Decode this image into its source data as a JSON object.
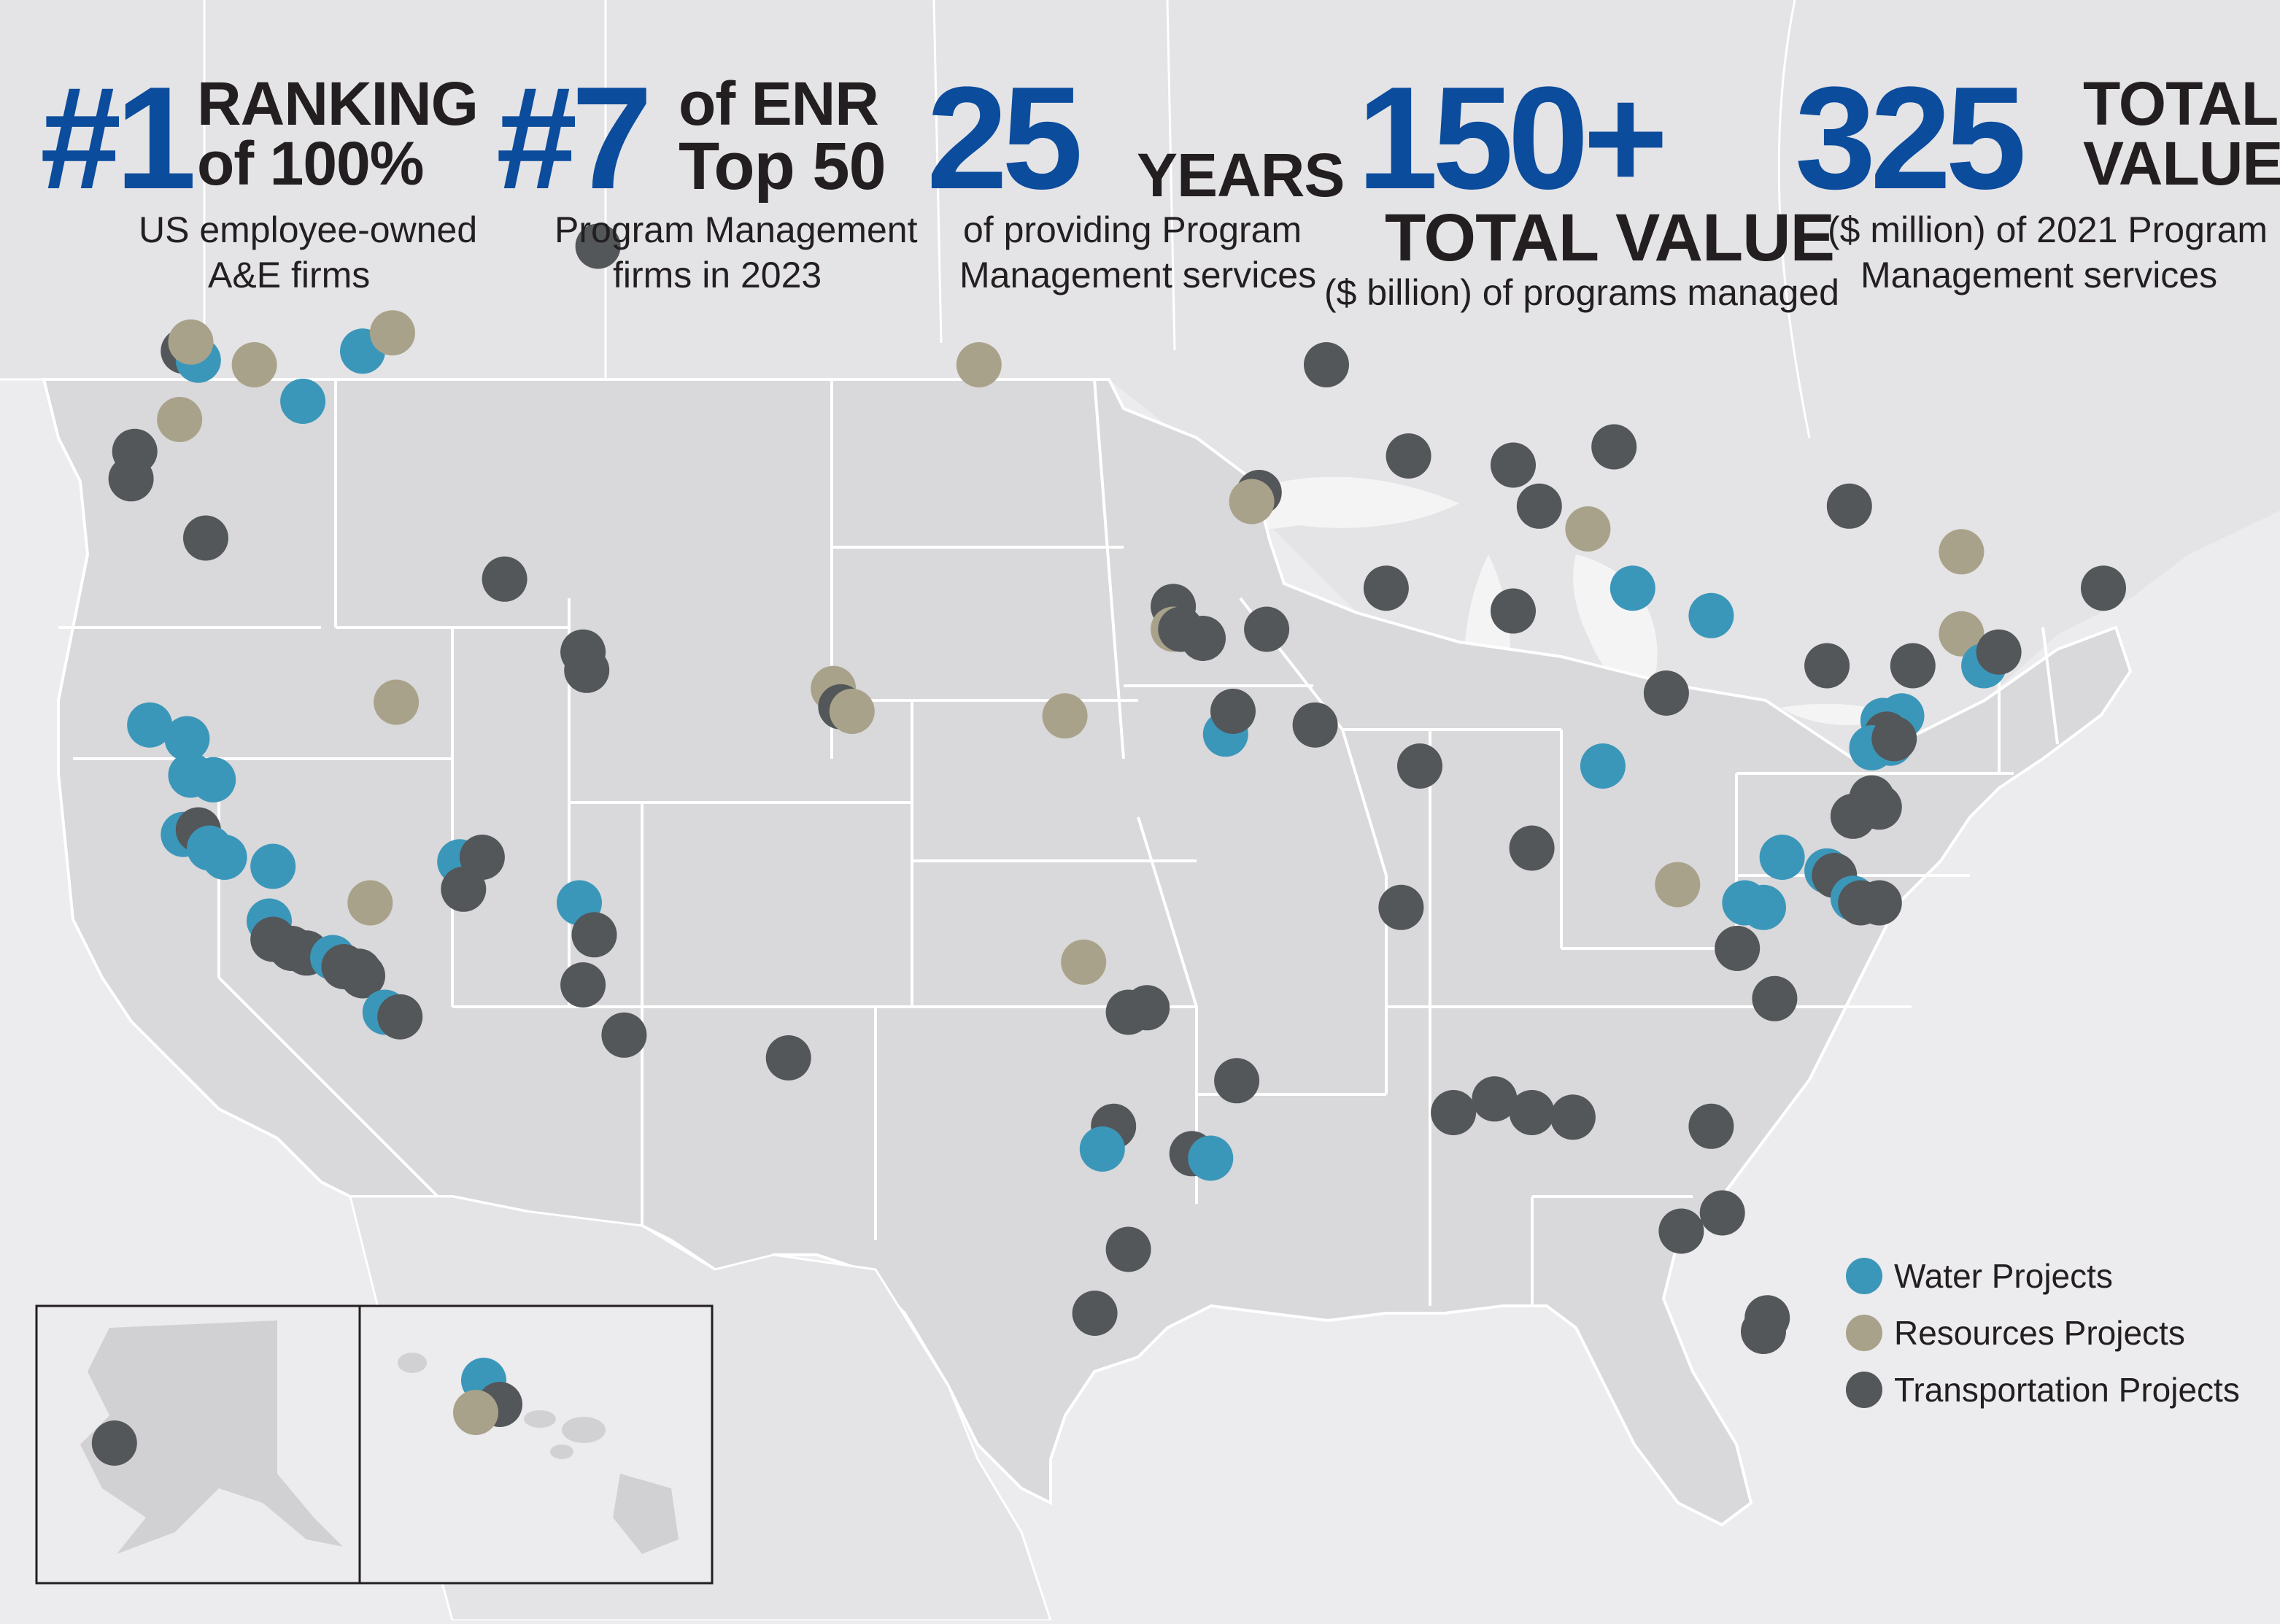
{
  "colors": {
    "water": "#3b97ba",
    "resources": "#a9a28a",
    "transportation": "#53575a",
    "stat_blue": "#0b4c9c",
    "land": "#d9d8da",
    "background": "#ecebed",
    "border": "#ffffff"
  },
  "stats": [
    {
      "big": "#1",
      "words": [
        "RANKING",
        "of 100%"
      ],
      "sub": [
        "US employee-owned",
        "A&E firms"
      ]
    },
    {
      "big": "#7",
      "words": [
        "of ENR",
        "Top 50"
      ],
      "sub": [
        "Program Management",
        "firms in 2023"
      ]
    },
    {
      "big": "25",
      "words": [
        "YEARS"
      ],
      "sub": [
        "of providing Program",
        "Management services"
      ]
    },
    {
      "big": "150+",
      "words": [
        "TOTAL VALUE"
      ],
      "sub": [
        "($ billion) of programs managed"
      ]
    },
    {
      "big": "325",
      "words": [
        "TOTAL",
        "VALUE"
      ],
      "sub": [
        "($ million) of 2021 Program",
        "Management services"
      ]
    }
  ],
  "legend": {
    "water": "Water Projects",
    "resources": "Resources Projects",
    "transportation": "Transportation Projects"
  },
  "project_markers": [
    {
      "type": "transportation",
      "lat": 49.6,
      "lon": -111.5
    },
    {
      "type": "transportation",
      "lat": 47.3,
      "lon": -122.6
    },
    {
      "type": "water",
      "lat": 47.1,
      "lon": -122.2
    },
    {
      "type": "resources",
      "lat": 47.5,
      "lon": -122.4
    },
    {
      "type": "resources",
      "lat": 47.0,
      "lon": -120.7
    },
    {
      "type": "water",
      "lat": 47.3,
      "lon": -117.8
    },
    {
      "type": "resources",
      "lat": 47.7,
      "lon": -117.0
    },
    {
      "type": "water",
      "lat": 46.2,
      "lon": -119.4
    },
    {
      "type": "resources",
      "lat": 45.8,
      "lon": -122.7
    },
    {
      "type": "transportation",
      "lat": 45.1,
      "lon": -123.9
    },
    {
      "type": "transportation",
      "lat": 44.5,
      "lon": -124.0
    },
    {
      "type": "transportation",
      "lat": 43.2,
      "lon": -122.0
    },
    {
      "type": "transportation",
      "lat": 42.3,
      "lon": -114.0
    },
    {
      "type": "resources",
      "lat": 39.6,
      "lon": -116.9
    },
    {
      "type": "water",
      "lat": 39.1,
      "lon": -123.5
    },
    {
      "type": "water",
      "lat": 38.8,
      "lon": -122.5
    },
    {
      "type": "water",
      "lat": 38.0,
      "lon": -122.4
    },
    {
      "type": "water",
      "lat": 37.9,
      "lon": -121.8
    },
    {
      "type": "water",
      "lat": 36.7,
      "lon": -122.6
    },
    {
      "type": "transportation",
      "lat": 36.8,
      "lon": -122.2
    },
    {
      "type": "water",
      "lat": 36.4,
      "lon": -121.9
    },
    {
      "type": "water",
      "lat": 36.2,
      "lon": -121.5
    },
    {
      "type": "water",
      "lat": 36.0,
      "lon": -120.2
    },
    {
      "type": "resources",
      "lat": 35.2,
      "lon": -117.6
    },
    {
      "type": "water",
      "lat": 34.8,
      "lon": -120.3
    },
    {
      "type": "transportation",
      "lat": 34.4,
      "lon": -120.2
    },
    {
      "type": "transportation",
      "lat": 34.2,
      "lon": -119.7
    },
    {
      "type": "transportation",
      "lat": 34.1,
      "lon": -119.3
    },
    {
      "type": "water",
      "lat": 34.0,
      "lon": -118.6
    },
    {
      "type": "transportation",
      "lat": 33.8,
      "lon": -118.3
    },
    {
      "type": "transportation",
      "lat": 33.7,
      "lon": -117.9
    },
    {
      "type": "transportation",
      "lat": 33.6,
      "lon": -117.8
    },
    {
      "type": "water",
      "lat": 32.8,
      "lon": -117.2
    },
    {
      "type": "transportation",
      "lat": 32.7,
      "lon": -116.8
    },
    {
      "type": "water",
      "lat": 36.1,
      "lon": -115.2
    },
    {
      "type": "transportation",
      "lat": 36.2,
      "lon": -114.6
    },
    {
      "type": "transportation",
      "lat": 35.5,
      "lon": -115.1
    },
    {
      "type": "water",
      "lat": 35.2,
      "lon": -112.0
    },
    {
      "type": "transportation",
      "lat": 34.5,
      "lon": -111.6
    },
    {
      "type": "transportation",
      "lat": 33.4,
      "lon": -111.9
    },
    {
      "type": "transportation",
      "lat": 32.3,
      "lon": -110.8
    },
    {
      "type": "transportation",
      "lat": 40.7,
      "lon": -111.9
    },
    {
      "type": "transportation",
      "lat": 40.3,
      "lon": -111.8
    },
    {
      "type": "transportation",
      "lat": 31.8,
      "lon": -106.4
    },
    {
      "type": "resources",
      "lat": 39.9,
      "lon": -105.2
    },
    {
      "type": "transportation",
      "lat": 39.5,
      "lon": -105.0
    },
    {
      "type": "resources",
      "lat": 39.4,
      "lon": -104.7
    },
    {
      "type": "resources",
      "lat": 47.0,
      "lon": -101.3
    },
    {
      "type": "resources",
      "lat": 39.3,
      "lon": -99.0
    },
    {
      "type": "resources",
      "lat": 33.9,
      "lon": -98.5
    },
    {
      "type": "transportation",
      "lat": 32.8,
      "lon": -97.3
    },
    {
      "type": "transportation",
      "lat": 32.9,
      "lon": -96.8
    },
    {
      "type": "transportation",
      "lat": 31.3,
      "lon": -94.4
    },
    {
      "type": "transportation",
      "lat": 30.3,
      "lon": -97.7
    },
    {
      "type": "water",
      "lat": 29.8,
      "lon": -98.0
    },
    {
      "type": "transportation",
      "lat": 29.7,
      "lon": -95.6
    },
    {
      "type": "water",
      "lat": 29.6,
      "lon": -95.1
    },
    {
      "type": "transportation",
      "lat": 27.6,
      "lon": -97.3
    },
    {
      "type": "transportation",
      "lat": 26.2,
      "lon": -98.2
    },
    {
      "type": "transportation",
      "lat": 44.2,
      "lon": -93.8
    },
    {
      "type": "resources",
      "lat": 44.0,
      "lon": -94.0
    },
    {
      "type": "transportation",
      "lat": 41.7,
      "lon": -96.1
    },
    {
      "type": "resources",
      "lat": 41.2,
      "lon": -96.1
    },
    {
      "type": "transportation",
      "lat": 41.2,
      "lon": -95.9
    },
    {
      "type": "transportation",
      "lat": 41.0,
      "lon": -95.3
    },
    {
      "type": "transportation",
      "lat": 41.2,
      "lon": -93.6
    },
    {
      "type": "transportation",
      "lat": 42.1,
      "lon": -90.4
    },
    {
      "type": "water",
      "lat": 38.9,
      "lon": -94.7
    },
    {
      "type": "transportation",
      "lat": 39.4,
      "lon": -94.5
    },
    {
      "type": "transportation",
      "lat": 39.1,
      "lon": -92.3
    },
    {
      "type": "transportation",
      "lat": 38.2,
      "lon": -89.5
    },
    {
      "type": "transportation",
      "lat": 35.1,
      "lon": -90.0
    },
    {
      "type": "transportation",
      "lat": 36.4,
      "lon": -86.5
    },
    {
      "type": "transportation",
      "lat": 41.6,
      "lon": -87.0
    },
    {
      "type": "transportation",
      "lat": 43.9,
      "lon": -86.3
    },
    {
      "type": "resources",
      "lat": 43.4,
      "lon": -85.0
    },
    {
      "type": "water",
      "lat": 42.1,
      "lon": -83.8
    },
    {
      "type": "water",
      "lat": 41.5,
      "lon": -81.7
    },
    {
      "type": "transportation",
      "lat": 39.8,
      "lon": -82.9
    },
    {
      "type": "water",
      "lat": 38.2,
      "lon": -84.6
    },
    {
      "type": "transportation",
      "lat": 43.9,
      "lon": -78.0
    },
    {
      "type": "resources",
      "lat": 42.9,
      "lon": -75.0
    },
    {
      "type": "resources",
      "lat": 41.1,
      "lon": -75.0
    },
    {
      "type": "transportation",
      "lat": 40.4,
      "lon": -78.6
    },
    {
      "type": "transportation",
      "lat": 40.4,
      "lon": -76.3
    },
    {
      "type": "water",
      "lat": 40.4,
      "lon": -74.4
    },
    {
      "type": "transportation",
      "lat": 40.7,
      "lon": -74.0
    },
    {
      "type": "transportation",
      "lat": 42.1,
      "lon": -71.2
    },
    {
      "type": "water",
      "lat": 39.2,
      "lon": -77.1
    },
    {
      "type": "water",
      "lat": 39.3,
      "lon": -76.6
    },
    {
      "type": "transportation",
      "lat": 38.9,
      "lon": -77.0
    },
    {
      "type": "water",
      "lat": 38.7,
      "lon": -76.9
    },
    {
      "type": "water",
      "lat": 38.6,
      "lon": -77.4
    },
    {
      "type": "transportation",
      "lat": 38.8,
      "lon": -76.8
    },
    {
      "type": "transportation",
      "lat": 37.5,
      "lon": -77.4
    },
    {
      "type": "transportation",
      "lat": 37.3,
      "lon": -77.2
    },
    {
      "type": "transportation",
      "lat": 37.1,
      "lon": -77.9
    },
    {
      "type": "water",
      "lat": 36.2,
      "lon": -79.8
    },
    {
      "type": "resources",
      "lat": 35.6,
      "lon": -82.6
    },
    {
      "type": "water",
      "lat": 35.9,
      "lon": -78.6
    },
    {
      "type": "transportation",
      "lat": 35.8,
      "lon": -78.4
    },
    {
      "type": "water",
      "lat": 35.2,
      "lon": -80.8
    },
    {
      "type": "water",
      "lat": 35.1,
      "lon": -80.3
    },
    {
      "type": "water",
      "lat": 35.3,
      "lon": -77.9
    },
    {
      "type": "transportation",
      "lat": 35.2,
      "lon": -77.7
    },
    {
      "type": "transportation",
      "lat": 35.2,
      "lon": -77.2
    },
    {
      "type": "transportation",
      "lat": 34.2,
      "lon": -81.0
    },
    {
      "type": "transportation",
      "lat": 33.1,
      "lon": -80.0
    },
    {
      "type": "transportation",
      "lat": 30.6,
      "lon": -88.6
    },
    {
      "type": "transportation",
      "lat": 30.9,
      "lon": -87.5
    },
    {
      "type": "transportation",
      "lat": 30.6,
      "lon": -86.5
    },
    {
      "type": "transportation",
      "lat": 30.5,
      "lon": -85.4
    },
    {
      "type": "transportation",
      "lat": 30.3,
      "lon": -81.7
    },
    {
      "type": "transportation",
      "lat": 28.4,
      "lon": -81.4
    },
    {
      "type": "transportation",
      "lat": 28.0,
      "lon": -82.5
    },
    {
      "type": "transportation",
      "lat": 26.1,
      "lon": -80.2
    },
    {
      "type": "transportation",
      "lat": 25.8,
      "lon": -80.3
    },
    {
      "type": "transportation",
      "lat": 47.0,
      "lon": -92.0
    },
    {
      "type": "transportation",
      "lat": 45.0,
      "lon": -89.8
    },
    {
      "type": "transportation",
      "lat": 44.8,
      "lon": -87.0
    },
    {
      "type": "transportation",
      "lat": 45.2,
      "lon": -84.3
    }
  ],
  "inset_markers": [
    {
      "type": "transportation",
      "inset": "alaska",
      "lat": 61.2,
      "lon": -149.9
    },
    {
      "type": "water",
      "inset": "hawaii",
      "lat": 21.6,
      "lon": -158.0
    },
    {
      "type": "transportation",
      "inset": "hawaii",
      "lat": 21.3,
      "lon": -157.8
    },
    {
      "type": "resources",
      "inset": "hawaii",
      "lat": 21.2,
      "lon": -158.1
    }
  ]
}
